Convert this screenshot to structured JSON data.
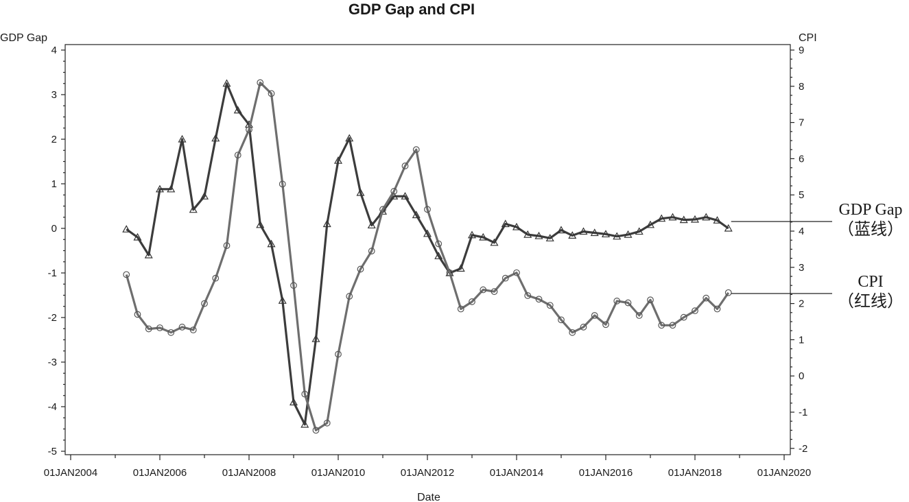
{
  "chart_data": {
    "type": "line",
    "title": "GDP Gap and CPI",
    "xlabel": "Date",
    "ylabel_left": "GDP Gap",
    "ylabel_right": "CPI",
    "x_tick_labels": [
      "01JAN2004",
      "01JAN2006",
      "01JAN2008",
      "01JAN2010",
      "01JAN2012",
      "01JAN2014",
      "01JAN2016",
      "01JAN2018",
      "01JAN2020"
    ],
    "xlim": [
      2004.0,
      2020.0
    ],
    "ylim_left": [
      -5.2,
      4.1
    ],
    "ylim_right": [
      -2.2,
      9.1
    ],
    "y_left_ticks": [
      "4",
      "3",
      "2",
      "1",
      "0",
      "-1",
      "-2",
      "-3",
      "-4",
      "-5"
    ],
    "y_right_ticks": [
      "9",
      "8",
      "7",
      "6",
      "5",
      "4",
      "3",
      "2",
      "1",
      "0",
      "-1",
      "-2"
    ],
    "grid": false,
    "annotations": [
      {
        "series": "GDP Gap",
        "lines": [
          "GDP Gap",
          "（蓝线）"
        ]
      },
      {
        "series": "CPI",
        "lines": [
          "CPI",
          "（红线）"
        ]
      }
    ],
    "x": [
      2005.25,
      2005.5,
      2005.75,
      2006.0,
      2006.25,
      2006.5,
      2006.75,
      2007.0,
      2007.25,
      2007.5,
      2007.75,
      2008.0,
      2008.25,
      2008.5,
      2008.75,
      2009.0,
      2009.25,
      2009.5,
      2009.75,
      2010.0,
      2010.25,
      2010.5,
      2010.75,
      2011.0,
      2011.25,
      2011.5,
      2011.75,
      2012.0,
      2012.25,
      2012.5,
      2012.75,
      2013.0,
      2013.25,
      2013.5,
      2013.75,
      2014.0,
      2014.25,
      2014.5,
      2014.75,
      2015.0,
      2015.25,
      2015.5,
      2015.75,
      2016.0,
      2016.25,
      2016.5,
      2016.75,
      2017.0,
      2017.25,
      2017.5,
      2017.75,
      2018.0,
      2018.25,
      2018.5,
      2018.75
    ],
    "series": [
      {
        "name": "GDP Gap",
        "axis": "left",
        "marker": "triangle",
        "color": "#3c3c3c",
        "values": [
          -0.02,
          -0.2,
          -0.6,
          0.88,
          0.88,
          2.0,
          0.42,
          0.72,
          2.02,
          3.25,
          2.65,
          2.33,
          0.08,
          -0.35,
          -1.62,
          -3.9,
          -4.4,
          -2.48,
          0.1,
          1.52,
          2.02,
          0.8,
          0.07,
          0.38,
          0.72,
          0.72,
          0.3,
          -0.12,
          -0.62,
          -1.0,
          -0.9,
          -0.15,
          -0.2,
          -0.32,
          0.1,
          0.03,
          -0.14,
          -0.17,
          -0.22,
          -0.04,
          -0.16,
          -0.07,
          -0.1,
          -0.13,
          -0.18,
          -0.14,
          -0.07,
          0.08,
          0.22,
          0.25,
          0.19,
          0.2,
          0.25,
          0.18,
          0.0
        ]
      },
      {
        "name": "CPI",
        "axis": "right",
        "marker": "circle",
        "color": "#6e6e6e",
        "values": [
          2.8,
          1.7,
          1.3,
          1.33,
          1.2,
          1.35,
          1.27,
          2.0,
          2.7,
          3.6,
          6.1,
          6.8,
          8.1,
          7.8,
          5.3,
          2.5,
          -0.5,
          -1.5,
          -1.3,
          0.6,
          2.2,
          2.95,
          3.45,
          4.6,
          5.1,
          5.8,
          6.25,
          4.6,
          3.65,
          2.85,
          1.85,
          2.05,
          2.38,
          2.33,
          2.7,
          2.85,
          2.22,
          2.12,
          1.95,
          1.55,
          1.2,
          1.35,
          1.67,
          1.42,
          2.07,
          2.02,
          1.67,
          2.1,
          1.4,
          1.4,
          1.62,
          1.8,
          2.15,
          1.85,
          2.3
        ]
      }
    ]
  }
}
